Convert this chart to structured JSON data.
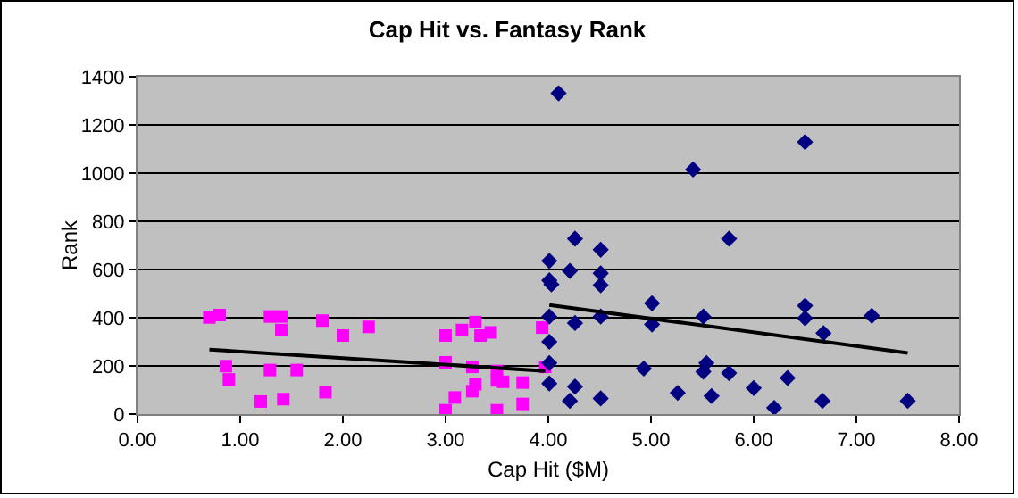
{
  "chart_data": {
    "type": "scatter",
    "title": "Cap Hit vs. Fantasy Rank",
    "xlabel": "Cap Hit ($M)",
    "ylabel": "Rank",
    "xlim": [
      0,
      8
    ],
    "xticks": [
      {
        "value": 0,
        "label": "0.00"
      },
      {
        "value": 1,
        "label": "1.00"
      },
      {
        "value": 2,
        "label": "2.00"
      },
      {
        "value": 3,
        "label": "3.00"
      },
      {
        "value": 4,
        "label": "4.00"
      },
      {
        "value": 5,
        "label": "5.00"
      },
      {
        "value": 6,
        "label": "6.00"
      },
      {
        "value": 7,
        "label": "7.00"
      },
      {
        "value": 8,
        "label": "8.00"
      }
    ],
    "ylim": [
      0,
      1400
    ],
    "yticks": [
      0,
      200,
      400,
      600,
      800,
      1000,
      1200,
      1400
    ],
    "grid": "y",
    "series": [
      {
        "color": "#ff00ff",
        "marker": "square",
        "x": [
          0.7,
          0.8,
          0.86,
          0.89,
          1.2,
          1.29,
          1.29,
          1.4,
          1.4,
          1.42,
          1.55,
          1.8,
          1.83,
          2.0,
          2.25,
          3.0,
          3.0,
          3.0,
          3.09,
          3.16,
          3.26,
          3.26,
          3.29,
          3.29,
          3.34,
          3.44,
          3.5,
          3.5,
          3.5,
          3.56,
          3.75,
          3.75,
          3.94,
          3.97
        ],
        "values": [
          401,
          411,
          199,
          144,
          52,
          405,
          183,
          405,
          349,
          62,
          183,
          388,
          91,
          326,
          362,
          326,
          215,
          16,
          69,
          349,
          196,
          95,
          382,
          124,
          326,
          339,
          179,
          16,
          140,
          134,
          131,
          42,
          359,
          196
        ]
      },
      {
        "color": "#000080",
        "marker": "diamond",
        "x": [
          4.01,
          4.01,
          4.03,
          4.01,
          4.01,
          4.01,
          4.01,
          4.1,
          4.21,
          4.21,
          4.26,
          4.26,
          4.26,
          4.51,
          4.51,
          4.51,
          4.51,
          4.51,
          4.93,
          5.01,
          5.01,
          5.26,
          5.41,
          5.51,
          5.51,
          5.54,
          5.59,
          5.76,
          5.76,
          6.0,
          6.2,
          6.33,
          6.5,
          6.5,
          6.5,
          6.67,
          6.68,
          7.15,
          7.5
        ],
        "values": [
          636,
          555,
          538,
          405,
          300,
          212,
          127,
          1331,
          594,
          55,
          728,
          378,
          114,
          682,
          584,
          535,
          405,
          65,
          189,
          460,
          372,
          88,
          1015,
          405,
          176,
          212,
          75,
          728,
          170,
          108,
          26,
          150,
          1129,
          450,
          398,
          55,
          336,
          408,
          55
        ]
      },
      {
        "type": "line",
        "color": "#000000",
        "marker": "none",
        "line_style": "solid",
        "x": [
          0.7,
          3.97
        ],
        "values": [
          268,
          179
        ]
      },
      {
        "type": "line",
        "color": "#000000",
        "marker": "none",
        "line_style": "solid",
        "x": [
          4.01,
          7.5
        ],
        "values": [
          453,
          254
        ]
      }
    ]
  }
}
